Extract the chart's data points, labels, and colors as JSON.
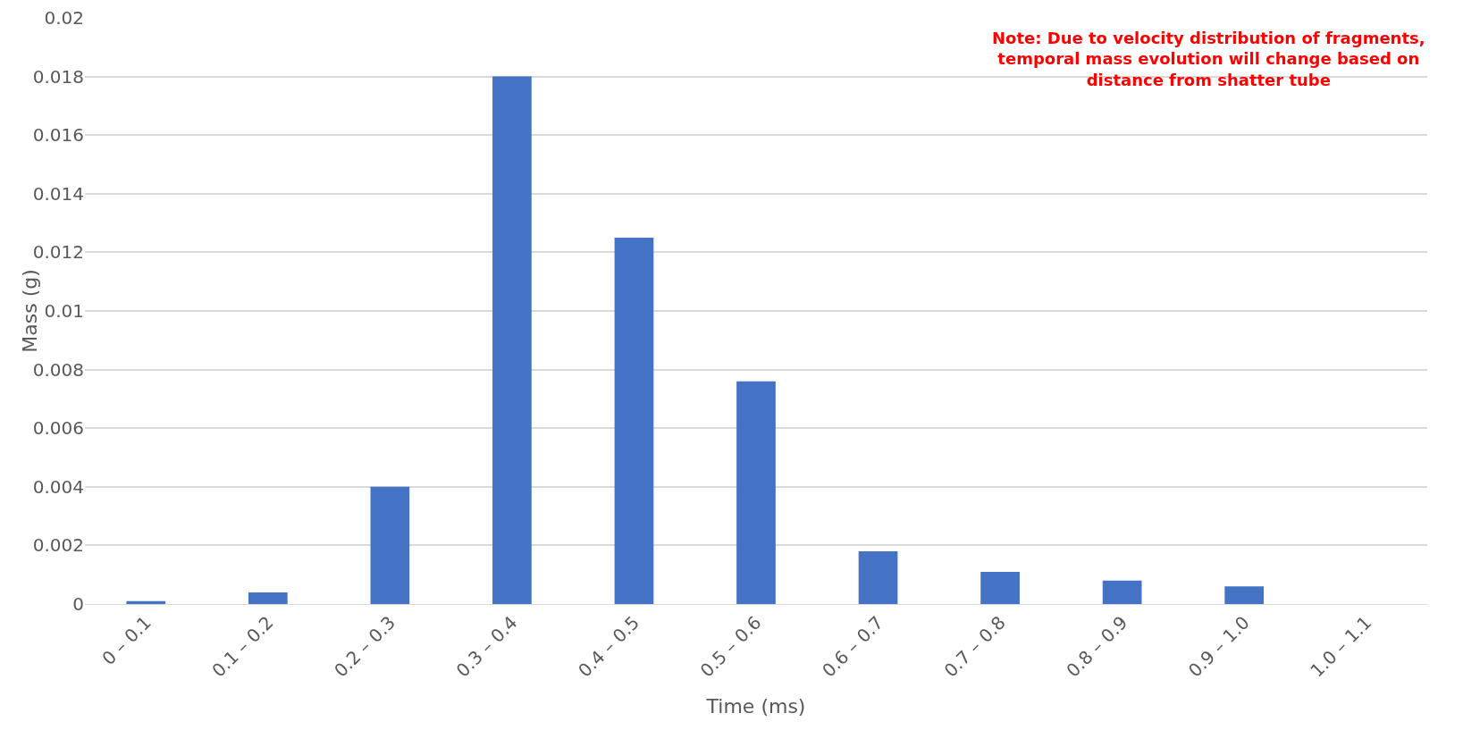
{
  "chart_data": {
    "type": "bar",
    "xlabel": "Time (ms)",
    "ylabel": "Mass (g)",
    "categories": [
      "0 – 0.1",
      "0.1 – 0.2",
      "0.2 – 0.3",
      "0.3 – 0.4",
      "0.4 – 0.5",
      "0.5 – 0.6",
      "0.6 – 0.7",
      "0.7 – 0.8",
      "0.8 – 0.9",
      "0.9 – 1.0",
      "1.0 – 1.1"
    ],
    "values": [
      0.0001,
      0.0004,
      0.004,
      0.018,
      0.0125,
      0.0076,
      0.0018,
      0.0011,
      0.0008,
      0.0006,
      0
    ],
    "color": "#4472c4",
    "ylim": [
      0,
      0.02
    ],
    "yticks": [
      0,
      0.002,
      0.004,
      0.006,
      0.008,
      0.01,
      0.012,
      0.014,
      0.016,
      0.018,
      0.02
    ],
    "grid": "y",
    "annotations": [
      "Note: Due to velocity distribution of fragments, temporal mass evolution will change based on distance from shatter tube"
    ]
  }
}
